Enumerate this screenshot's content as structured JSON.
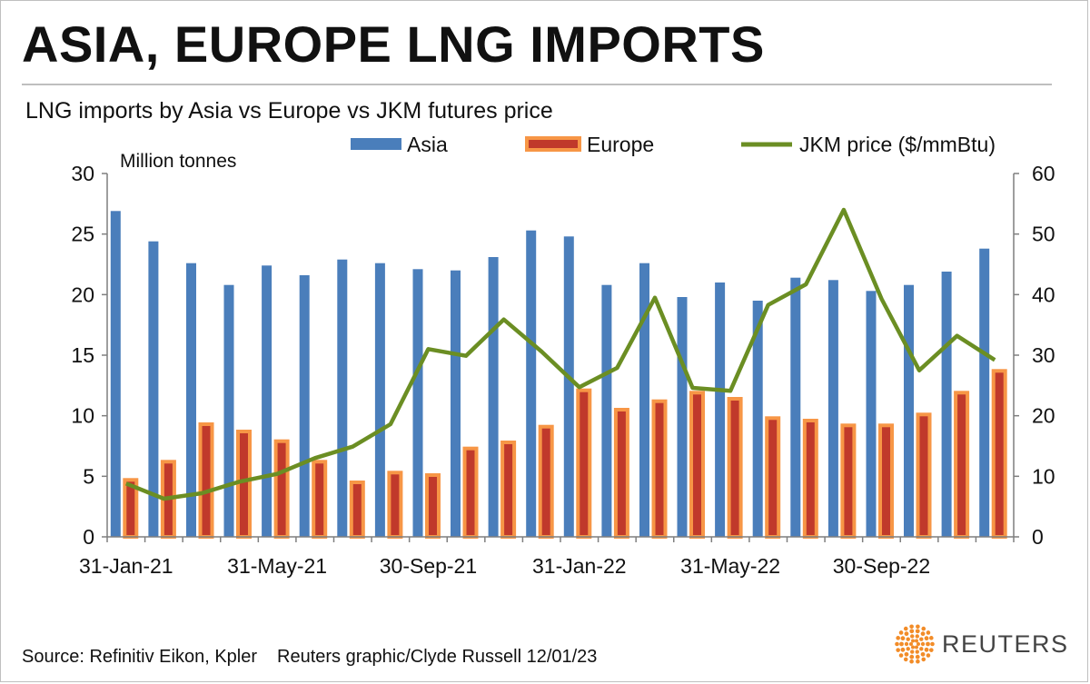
{
  "header": {
    "title": "ASIA, EUROPE LNG IMPORTS",
    "subtitle": "LNG imports by Asia vs Europe vs JKM futures price"
  },
  "footer": {
    "source": "Source: Refinitiv Eikon, Kpler",
    "credit": "Reuters graphic/Clyde Russell 12/01/23",
    "logo_text": "REUTERS"
  },
  "colors": {
    "asia": "#4a7ebb",
    "europe_fill": "#c0392b",
    "europe_border": "#f79646",
    "jkm": "#6b8e23",
    "axis": "#7f7f7f",
    "logo_orange": "#f28c28"
  },
  "chart_data": {
    "type": "bar",
    "unit_label": "Million tonnes",
    "x_tick_labels": [
      "31-Jan-21",
      "31-May-21",
      "30-Sep-21",
      "31-Jan-22",
      "31-May-22",
      "30-Sep-22"
    ],
    "x_tick_indices": [
      0,
      4,
      8,
      12,
      16,
      20
    ],
    "y_left": {
      "min": 0,
      "max": 30,
      "ticks": [
        0,
        5,
        10,
        15,
        20,
        25,
        30
      ]
    },
    "y_right": {
      "min": 0,
      "max": 60,
      "ticks": [
        0,
        10,
        20,
        30,
        40,
        50,
        60
      ]
    },
    "legend_placement": "top",
    "series": [
      {
        "name": "Asia",
        "kind": "bar",
        "axis": "left",
        "values": [
          26.9,
          24.4,
          22.6,
          20.8,
          22.4,
          21.6,
          22.9,
          22.6,
          22.1,
          22.0,
          23.1,
          25.3,
          24.8,
          20.8,
          22.6,
          19.8,
          21.0,
          19.5,
          21.4,
          21.2,
          20.3,
          20.8,
          21.9,
          23.8
        ]
      },
      {
        "name": "Europe",
        "kind": "bar",
        "axis": "left",
        "values": [
          4.7,
          6.2,
          9.3,
          8.7,
          7.9,
          6.2,
          4.5,
          5.3,
          5.1,
          7.3,
          7.8,
          9.1,
          12.1,
          10.5,
          11.2,
          11.9,
          11.4,
          9.8,
          9.6,
          9.2,
          9.2,
          10.1,
          11.9,
          13.7
        ]
      },
      {
        "name": "JKM price ($/mmBtu)",
        "kind": "line",
        "axis": "right",
        "values": [
          8.8,
          6.3,
          7.2,
          9.1,
          10.4,
          13.0,
          14.9,
          18.6,
          31.0,
          29.9,
          35.9,
          30.6,
          24.7,
          27.9,
          39.5,
          24.6,
          24.1,
          38.3,
          41.7,
          54.0,
          39.3,
          27.5,
          33.2,
          29.2
        ]
      }
    ]
  }
}
